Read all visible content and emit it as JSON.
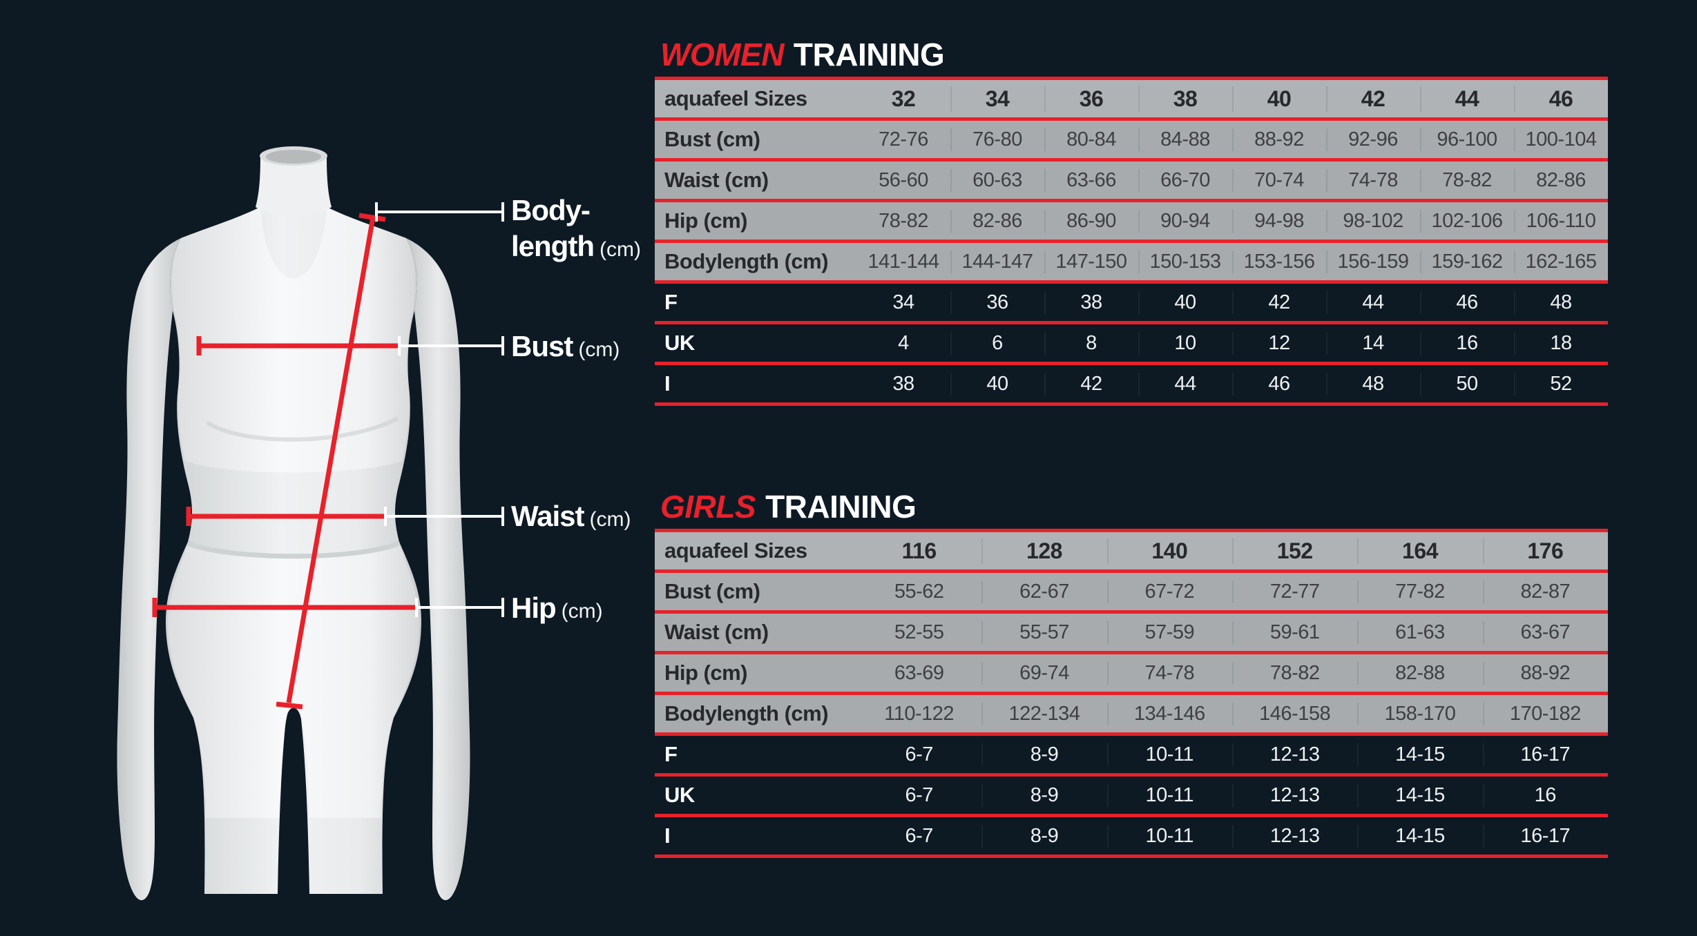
{
  "colors": {
    "background": "#0d1a24",
    "accent_red": "#e8212b",
    "row_gray": "#a8abad",
    "header_gray": "#b0b3b5",
    "white": "#ffffff"
  },
  "diagram": {
    "bodylength_label": {
      "line1": "Body-",
      "line2": "length",
      "unit": "(cm)"
    },
    "bust_label": {
      "text": "Bust",
      "unit": "(cm)"
    },
    "waist_label": {
      "text": "Waist",
      "unit": "(cm)"
    },
    "hip_label": {
      "text": "Hip",
      "unit": "(cm)"
    }
  },
  "women_table": {
    "title_accent": "WOMEN",
    "title_rest": "TRAINING",
    "header_label": "aquafeel Sizes",
    "sizes": [
      "32",
      "34",
      "36",
      "38",
      "40",
      "42",
      "44",
      "46"
    ],
    "rows": [
      {
        "label": "Bust (cm)",
        "theme": "gray",
        "values": [
          "72-76",
          "76-80",
          "80-84",
          "84-88",
          "88-92",
          "92-96",
          "96-100",
          "100-104"
        ]
      },
      {
        "label": "Waist (cm)",
        "theme": "gray",
        "values": [
          "56-60",
          "60-63",
          "63-66",
          "66-70",
          "70-74",
          "74-78",
          "78-82",
          "82-86"
        ]
      },
      {
        "label": "Hip (cm)",
        "theme": "gray",
        "values": [
          "78-82",
          "82-86",
          "86-90",
          "90-94",
          "94-98",
          "98-102",
          "102-106",
          "106-110"
        ]
      },
      {
        "label": "Bodylength (cm)",
        "theme": "gray",
        "values": [
          "141-144",
          "144-147",
          "147-150",
          "150-153",
          "153-156",
          "156-159",
          "159-162",
          "162-165"
        ]
      },
      {
        "label": "F",
        "theme": "dark",
        "values": [
          "34",
          "36",
          "38",
          "40",
          "42",
          "44",
          "46",
          "48"
        ]
      },
      {
        "label": "UK",
        "theme": "dark",
        "values": [
          "4",
          "6",
          "8",
          "10",
          "12",
          "14",
          "16",
          "18"
        ]
      },
      {
        "label": "I",
        "theme": "dark",
        "values": [
          "38",
          "40",
          "42",
          "44",
          "46",
          "48",
          "50",
          "52"
        ]
      }
    ]
  },
  "girls_table": {
    "title_accent": "GIRLS",
    "title_rest": "TRAINING",
    "header_label": "aquafeel Sizes",
    "sizes": [
      "116",
      "128",
      "140",
      "152",
      "164",
      "176"
    ],
    "rows": [
      {
        "label": "Bust (cm)",
        "theme": "gray",
        "values": [
          "55-62",
          "62-67",
          "67-72",
          "72-77",
          "77-82",
          "82-87"
        ]
      },
      {
        "label": "Waist (cm)",
        "theme": "gray",
        "values": [
          "52-55",
          "55-57",
          "57-59",
          "59-61",
          "61-63",
          "63-67"
        ]
      },
      {
        "label": "Hip (cm)",
        "theme": "gray",
        "values": [
          "63-69",
          "69-74",
          "74-78",
          "78-82",
          "82-88",
          "88-92"
        ]
      },
      {
        "label": "Bodylength (cm)",
        "theme": "gray",
        "values": [
          "110-122",
          "122-134",
          "134-146",
          "146-158",
          "158-170",
          "170-182"
        ]
      },
      {
        "label": "F",
        "theme": "dark",
        "values": [
          "6-7",
          "8-9",
          "10-11",
          "12-13",
          "14-15",
          "16-17"
        ]
      },
      {
        "label": "UK",
        "theme": "dark",
        "values": [
          "6-7",
          "8-9",
          "10-11",
          "12-13",
          "14-15",
          "16"
        ]
      },
      {
        "label": "I",
        "theme": "dark",
        "values": [
          "6-7",
          "8-9",
          "10-11",
          "12-13",
          "14-15",
          "16-17"
        ]
      }
    ]
  }
}
